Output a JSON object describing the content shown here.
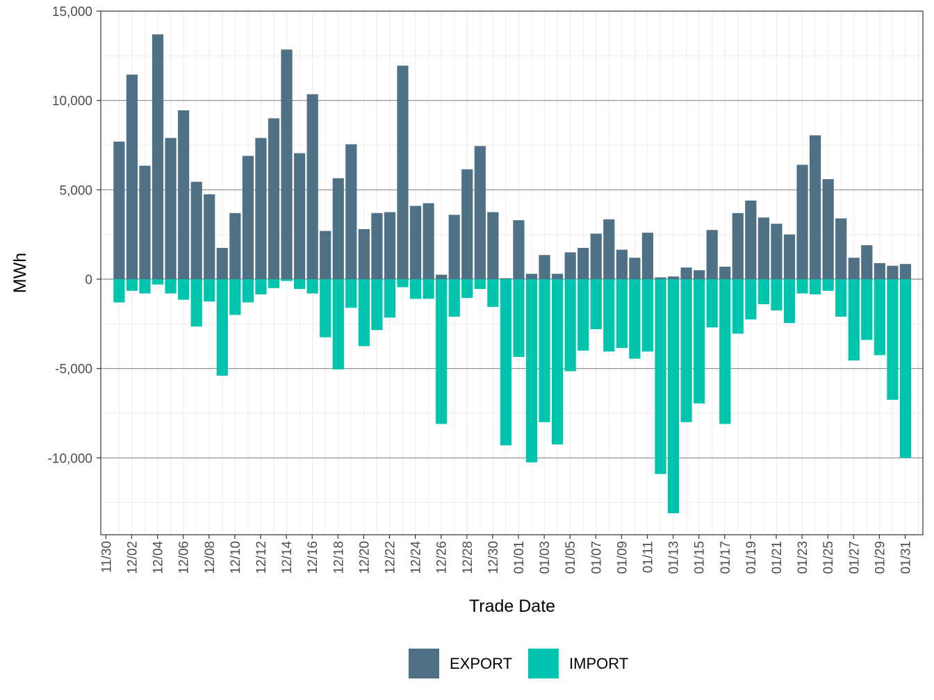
{
  "chart_data": {
    "type": "bar",
    "stacking": "diverging",
    "xlabel": "Trade Date",
    "ylabel": "MWh",
    "ylim": [
      -14300,
      15000
    ],
    "yticks": [
      15000,
      10000,
      5000,
      0,
      -5000,
      -10000
    ],
    "ytick_labels": [
      "15,000",
      "10,000",
      "5,000",
      "0",
      "-5,000",
      "-10,000"
    ],
    "grid": true,
    "legend_position": "bottom",
    "categories": [
      "11/30",
      "12/01",
      "12/02",
      "12/03",
      "12/04",
      "12/05",
      "12/06",
      "12/07",
      "12/08",
      "12/09",
      "12/10",
      "12/11",
      "12/12",
      "12/13",
      "12/14",
      "12/15",
      "12/16",
      "12/17",
      "12/18",
      "12/19",
      "12/20",
      "12/21",
      "12/22",
      "12/23",
      "12/24",
      "12/25",
      "12/26",
      "12/27",
      "12/28",
      "12/29",
      "12/30",
      "12/31",
      "01/01",
      "01/02",
      "01/03",
      "01/04",
      "01/05",
      "01/06",
      "01/07",
      "01/08",
      "01/09",
      "01/10",
      "01/11",
      "01/12",
      "01/13",
      "01/14",
      "01/15",
      "01/16",
      "01/17",
      "01/18",
      "01/19",
      "01/20",
      "01/21",
      "01/22",
      "01/23",
      "01/24",
      "01/25",
      "01/26",
      "01/27",
      "01/28",
      "01/29",
      "01/30",
      "01/31"
    ],
    "xtick_labels": [
      "11/30",
      "12/02",
      "12/04",
      "12/06",
      "12/08",
      "12/10",
      "12/12",
      "12/14",
      "12/16",
      "12/18",
      "12/20",
      "12/22",
      "12/24",
      "12/26",
      "12/28",
      "12/30",
      "01/01",
      "01/03",
      "01/05",
      "01/07",
      "01/09",
      "01/11",
      "01/13",
      "01/15",
      "01/17",
      "01/19",
      "01/21",
      "01/23",
      "01/25",
      "01/27",
      "01/29",
      "01/31"
    ],
    "series": [
      {
        "name": "EXPORT",
        "color": "#4e7186",
        "values": [
          7700,
          11450,
          6350,
          13700,
          7900,
          9450,
          5450,
          4750,
          1750,
          3700,
          6900,
          7900,
          9000,
          12850,
          7050,
          10350,
          2700,
          5650,
          7550,
          2800,
          3700,
          3750,
          11950,
          4100,
          4250,
          250,
          3600,
          6150,
          7450,
          3750,
          50,
          3300,
          300,
          1350,
          300,
          1500,
          1750,
          2550,
          3350,
          1650,
          1200,
          2600,
          100,
          150,
          650,
          500,
          2750,
          700,
          3700,
          4400,
          3450,
          3100,
          2500,
          6400,
          8050,
          5600,
          3400,
          1200,
          1900,
          900,
          750,
          850,
          0
        ]
      },
      {
        "name": "IMPORT",
        "color": "#00c5ae",
        "values": [
          -1300,
          -650,
          -800,
          -300,
          -800,
          -1150,
          -2650,
          -1250,
          -5400,
          -2000,
          -1300,
          -850,
          -500,
          -100,
          -550,
          -800,
          -3250,
          -5050,
          -1600,
          -3750,
          -2850,
          -2150,
          -450,
          -1100,
          -1100,
          -8100,
          -2100,
          -1050,
          -550,
          -1550,
          -9300,
          -4350,
          -10250,
          -8000,
          -9250,
          -5150,
          -4000,
          -2800,
          -4050,
          -3850,
          -4450,
          -4050,
          -10900,
          -13100,
          -8000,
          -6950,
          -2700,
          -8100,
          -3050,
          -2250,
          -1400,
          -1750,
          -2450,
          -800,
          -850,
          -650,
          -2100,
          -4550,
          -3400,
          -4250,
          -6750,
          -10000,
          0
        ]
      }
    ]
  }
}
